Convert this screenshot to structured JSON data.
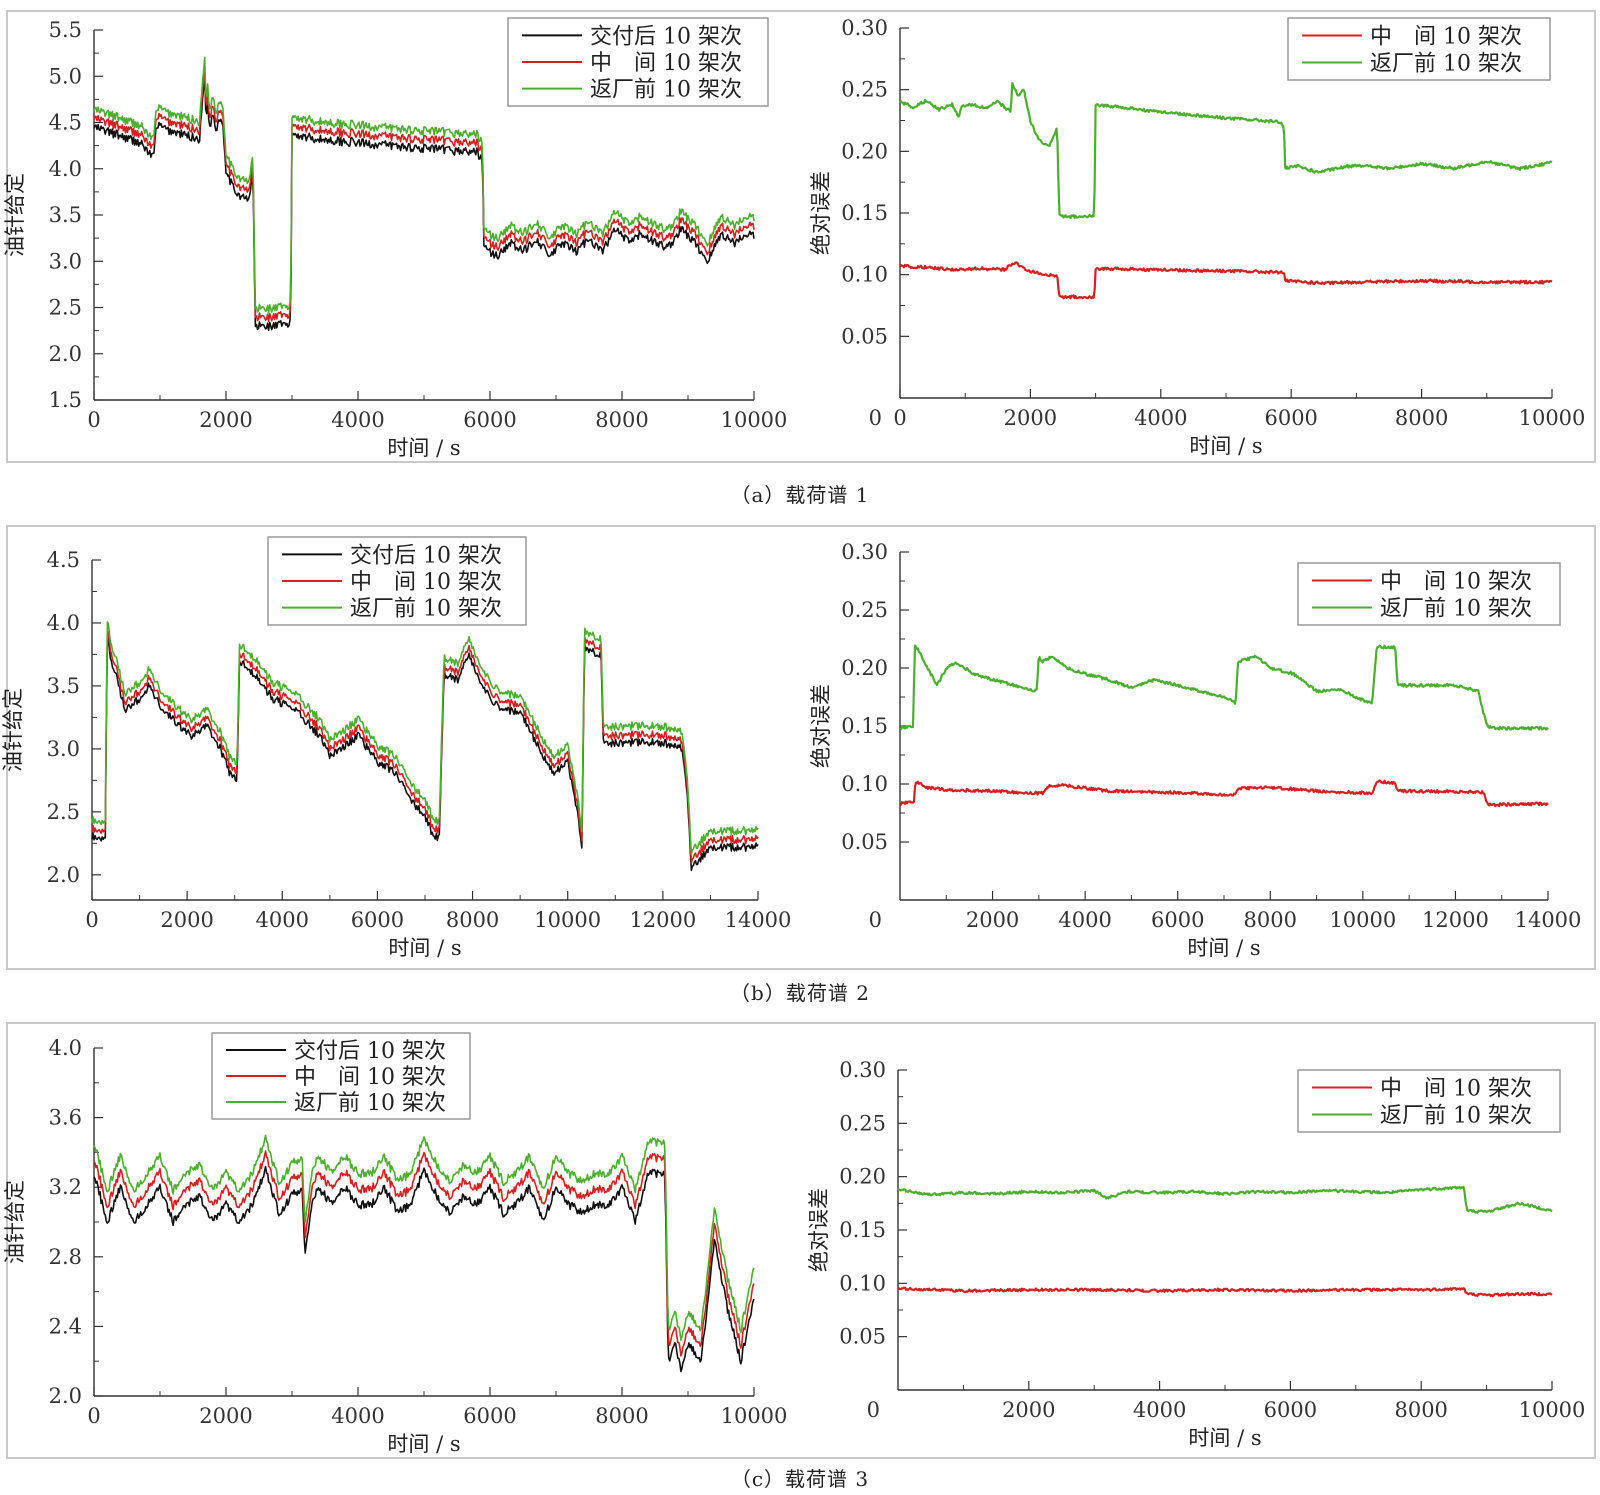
{
  "figure": {
    "captions": [
      "（a）载荷谱 1",
      "（b）载荷谱 2",
      "（c）载荷谱 3"
    ]
  },
  "colors": {
    "black": "#111111",
    "red": "#d42020",
    "green": "#4cae2e"
  },
  "chart_data": [
    {
      "id": "a-left",
      "type": "line",
      "title": "",
      "xlabel": "时间 / s",
      "ylabel": "油针给定",
      "xlim": [
        0,
        10000
      ],
      "ylim": [
        1.5,
        5.5
      ],
      "xticks": [
        0,
        2000,
        4000,
        6000,
        8000,
        10000
      ],
      "yticks": [
        1.5,
        2.0,
        2.5,
        3.0,
        3.5,
        4.0,
        4.5,
        5.0,
        5.5
      ],
      "ytick_labels": [
        "1.5",
        "2.0",
        "2.5",
        "3.0",
        "3.5",
        "4.0",
        "4.5",
        "5.0",
        "5.5"
      ],
      "legend": "top-right",
      "series": [
        {
          "name": "交付后 10 架次",
          "color": "#111111",
          "offset": 0.0,
          "x": [
            0,
            300,
            700,
            900,
            950,
            1100,
            1300,
            1600,
            1680,
            1700,
            1720,
            1750,
            1800,
            1850,
            1900,
            1950,
            2000,
            2100,
            2200,
            2350,
            2400,
            2420,
            2440,
            2500,
            2700,
            2980,
            3000,
            3400,
            4000,
            5000,
            5800,
            5890,
            5900,
            6100,
            6300,
            6500,
            6700,
            6900,
            7100,
            7300,
            7500,
            7700,
            7900,
            8100,
            8300,
            8500,
            8700,
            8900,
            9100,
            9300,
            9500,
            9700,
            9900,
            10000
          ],
          "y": [
            4.45,
            4.38,
            4.28,
            4.12,
            4.48,
            4.42,
            4.38,
            4.32,
            5.05,
            4.45,
            4.8,
            4.42,
            4.6,
            4.42,
            4.55,
            4.5,
            4.0,
            3.8,
            3.72,
            3.65,
            3.95,
            3.6,
            2.28,
            2.3,
            2.3,
            2.32,
            4.38,
            4.32,
            4.28,
            4.22,
            4.18,
            4.1,
            3.15,
            3.05,
            3.2,
            3.1,
            3.25,
            3.05,
            3.2,
            3.1,
            3.25,
            3.1,
            3.35,
            3.2,
            3.3,
            3.2,
            3.15,
            3.35,
            3.2,
            3.0,
            3.3,
            3.2,
            3.3,
            3.28
          ]
        },
        {
          "name": "中　间 10 架次",
          "color": "#d42020",
          "offset": 0.096
        },
        {
          "name": "返厂前 10 架次",
          "color": "#4cae2e",
          "offset": 0.19
        }
      ]
    },
    {
      "id": "a-right",
      "type": "line",
      "title": "",
      "xlabel": "时间 / s",
      "ylabel": "绝对误差",
      "xlim": [
        0,
        10000
      ],
      "ylim": [
        0,
        0.3
      ],
      "xticks": [
        0,
        2000,
        4000,
        6000,
        8000,
        10000
      ],
      "yticks": [
        0.05,
        0.1,
        0.15,
        0.2,
        0.25,
        0.3
      ],
      "ytick_labels": [
        "0.05",
        "0.10",
        "0.15",
        "0.20",
        "0.25",
        "0.30"
      ],
      "legend": "top-right",
      "series": [
        {
          "name": "中　间 10 架次",
          "color": "#d42020",
          "x": [
            0,
            400,
            800,
            1200,
            1600,
            1700,
            1800,
            1900,
            2000,
            2200,
            2400,
            2420,
            2440,
            2600,
            2980,
            3000,
            4000,
            5000,
            5800,
            5890,
            5900,
            6500,
            7000,
            8000,
            9000,
            10000
          ],
          "y": [
            0.107,
            0.106,
            0.104,
            0.105,
            0.104,
            0.108,
            0.109,
            0.105,
            0.103,
            0.1,
            0.099,
            0.098,
            0.082,
            0.082,
            0.082,
            0.105,
            0.104,
            0.103,
            0.102,
            0.102,
            0.095,
            0.093,
            0.094,
            0.095,
            0.094,
            0.094
          ]
        },
        {
          "name": "返厂前 10 架次",
          "color": "#4cae2e",
          "x": [
            0,
            200,
            400,
            600,
            800,
            900,
            950,
            1100,
            1300,
            1500,
            1700,
            1720,
            1800,
            1900,
            2000,
            2100,
            2200,
            2300,
            2400,
            2420,
            2440,
            2600,
            2980,
            3000,
            4000,
            5000,
            5800,
            5890,
            5900,
            6100,
            6400,
            7000,
            7500,
            8000,
            8500,
            9000,
            9500,
            10000
          ],
          "y": [
            0.24,
            0.236,
            0.241,
            0.234,
            0.238,
            0.228,
            0.237,
            0.238,
            0.235,
            0.24,
            0.232,
            0.255,
            0.245,
            0.25,
            0.225,
            0.212,
            0.206,
            0.205,
            0.218,
            0.205,
            0.148,
            0.147,
            0.148,
            0.238,
            0.232,
            0.227,
            0.224,
            0.221,
            0.186,
            0.188,
            0.183,
            0.189,
            0.186,
            0.19,
            0.186,
            0.192,
            0.186,
            0.191
          ]
        }
      ]
    },
    {
      "id": "b-left",
      "type": "line",
      "title": "",
      "xlabel": "时间 / s",
      "ylabel": "油针给定",
      "xlim": [
        0,
        14000
      ],
      "ylim": [
        1.8,
        4.5
      ],
      "xticks": [
        0,
        2000,
        4000,
        6000,
        8000,
        10000,
        12000,
        14000
      ],
      "yticks": [
        2.0,
        2.5,
        3.0,
        3.5,
        4.0,
        4.5
      ],
      "ytick_labels": [
        "2.0",
        "2.5",
        "3.0",
        "3.5",
        "4.0",
        "4.5"
      ],
      "legend": "top-center",
      "series": [
        {
          "name": "交付后 10 架次",
          "color": "#111111",
          "offset": 0.0,
          "x": [
            0,
            280,
            320,
            400,
            500,
            700,
            1000,
            1200,
            1500,
            1800,
            2100,
            2400,
            2700,
            2900,
            3050,
            3100,
            3400,
            3800,
            4300,
            4800,
            5000,
            5200,
            5600,
            6000,
            6400,
            6700,
            7000,
            7200,
            7300,
            7400,
            7700,
            7900,
            8200,
            8600,
            9000,
            9400,
            9700,
            10000,
            10200,
            10300,
            10350,
            10700,
            10750,
            11000,
            11500,
            12000,
            12400,
            12500,
            12600,
            13000,
            14000
          ],
          "y": [
            2.3,
            2.3,
            3.9,
            3.7,
            3.6,
            3.3,
            3.4,
            3.5,
            3.3,
            3.2,
            3.1,
            3.2,
            3.0,
            2.8,
            2.75,
            3.7,
            3.6,
            3.4,
            3.3,
            3.1,
            2.95,
            3.0,
            3.1,
            2.9,
            2.8,
            2.6,
            2.45,
            2.3,
            2.3,
            3.6,
            3.55,
            3.75,
            3.5,
            3.3,
            3.3,
            3.0,
            2.8,
            2.9,
            2.5,
            2.2,
            3.8,
            3.75,
            3.05,
            3.05,
            3.05,
            3.05,
            3.0,
            2.7,
            2.05,
            2.22,
            2.22
          ]
        },
        {
          "name": "中　间 10 架次",
          "color": "#d42020",
          "offset": 0.06
        },
        {
          "name": "返厂前 10 架次",
          "color": "#4cae2e",
          "offset": 0.13
        }
      ]
    },
    {
      "id": "b-right",
      "type": "line",
      "title": "",
      "xlabel": "时间 / s",
      "ylabel": "绝对误差",
      "xlim": [
        0,
        14000
      ],
      "ylim": [
        0,
        0.3
      ],
      "xticks": [
        2000,
        4000,
        6000,
        8000,
        10000,
        12000,
        14000
      ],
      "yticks": [
        0.05,
        0.1,
        0.15,
        0.2,
        0.25,
        0.3
      ],
      "ytick_labels": [
        "0.05",
        "0.10",
        "0.15",
        "0.20",
        "0.25",
        "0.30"
      ],
      "legend": "top-right",
      "series": [
        {
          "name": "中　间 10 架次",
          "color": "#d42020",
          "x": [
            0,
            300,
            330,
            600,
            1000,
            2000,
            3000,
            3100,
            3200,
            3500,
            4500,
            5500,
            6500,
            7200,
            7300,
            8000,
            9000,
            10200,
            10300,
            10700,
            10750,
            12600,
            12700,
            14000
          ],
          "y": [
            0.083,
            0.085,
            0.102,
            0.097,
            0.095,
            0.094,
            0.092,
            0.092,
            0.098,
            0.099,
            0.094,
            0.093,
            0.092,
            0.09,
            0.096,
            0.097,
            0.094,
            0.092,
            0.102,
            0.101,
            0.094,
            0.093,
            0.082,
            0.083
          ]
        },
        {
          "name": "返厂前 10 架次",
          "color": "#4cae2e",
          "x": [
            0,
            280,
            320,
            400,
            600,
            800,
            1000,
            1200,
            1600,
            2000,
            2500,
            2950,
            3000,
            3050,
            3300,
            3600,
            4000,
            4500,
            5000,
            5500,
            6000,
            6500,
            7000,
            7250,
            7300,
            7700,
            8000,
            8500,
            9000,
            9500,
            10000,
            10200,
            10300,
            10700,
            10750,
            11500,
            12000,
            12500,
            12600,
            12700,
            13000,
            14000
          ],
          "y": [
            0.148,
            0.15,
            0.22,
            0.215,
            0.2,
            0.185,
            0.2,
            0.205,
            0.195,
            0.19,
            0.185,
            0.18,
            0.21,
            0.205,
            0.21,
            0.2,
            0.195,
            0.19,
            0.183,
            0.19,
            0.185,
            0.18,
            0.175,
            0.17,
            0.205,
            0.21,
            0.2,
            0.195,
            0.18,
            0.182,
            0.172,
            0.17,
            0.218,
            0.218,
            0.185,
            0.185,
            0.185,
            0.18,
            0.162,
            0.149,
            0.148,
            0.148
          ]
        }
      ]
    },
    {
      "id": "c-left",
      "type": "line",
      "title": "",
      "xlabel": "时间 / s",
      "ylabel": "油针给定",
      "xlim": [
        0,
        10000
      ],
      "ylim": [
        2.0,
        4.0
      ],
      "xticks": [
        0,
        2000,
        4000,
        6000,
        8000,
        10000
      ],
      "yticks": [
        2.0,
        2.4,
        2.8,
        3.2,
        3.6,
        4.0
      ],
      "ytick_labels": [
        "2.0",
        "2.4",
        "2.8",
        "3.2",
        "3.6",
        "4.0"
      ],
      "legend": "top-left",
      "series": [
        {
          "name": "交付后 10 架次",
          "color": "#111111",
          "offset": 0.0,
          "x": [
            0,
            200,
            400,
            600,
            800,
            1000,
            1200,
            1400,
            1600,
            1800,
            2000,
            2200,
            2400,
            2600,
            2800,
            3000,
            3150,
            3200,
            3300,
            3400,
            3600,
            3800,
            4000,
            4200,
            4400,
            4600,
            4800,
            5000,
            5200,
            5400,
            5600,
            5800,
            6000,
            6200,
            6400,
            6600,
            6800,
            7000,
            7200,
            7400,
            7600,
            7800,
            8000,
            8200,
            8400,
            8650,
            8700,
            8800,
            8900,
            9000,
            9200,
            9400,
            9600,
            9800,
            10000
          ],
          "y": [
            3.28,
            3.0,
            3.2,
            3.0,
            3.1,
            3.2,
            3.0,
            3.1,
            3.15,
            3.0,
            3.1,
            3.0,
            3.1,
            3.3,
            3.05,
            3.15,
            3.2,
            2.8,
            3.1,
            3.2,
            3.1,
            3.2,
            3.1,
            3.1,
            3.2,
            3.05,
            3.1,
            3.3,
            3.15,
            3.05,
            3.15,
            3.1,
            3.2,
            3.05,
            3.1,
            3.2,
            3.0,
            3.2,
            3.1,
            3.05,
            3.1,
            3.1,
            3.2,
            3.0,
            3.28,
            3.28,
            2.2,
            2.3,
            2.15,
            2.3,
            2.2,
            2.9,
            2.5,
            2.2,
            2.55
          ]
        },
        {
          "name": "中　间 10 架次",
          "color": "#d42020",
          "offset": 0.09
        },
        {
          "name": "返厂前 10 架次",
          "color": "#4cae2e",
          "offset": 0.18
        }
      ]
    },
    {
      "id": "c-right",
      "type": "line",
      "title": "",
      "xlabel": "时间 / s",
      "ylabel": "绝对误差",
      "xlim": [
        0,
        10000
      ],
      "ylim": [
        0,
        0.3
      ],
      "xticks": [
        2000,
        4000,
        6000,
        8000,
        10000
      ],
      "yticks": [
        0.05,
        0.1,
        0.15,
        0.2,
        0.25,
        0.3
      ],
      "ytick_labels": [
        "0.05",
        "0.10",
        "0.15",
        "0.20",
        "0.25",
        "0.30"
      ],
      "legend": "top-right",
      "series": [
        {
          "name": "中　间 10 架次",
          "color": "#d42020",
          "x": [
            0,
            1000,
            2000,
            3000,
            4000,
            5000,
            6000,
            7000,
            8000,
            8650,
            8700,
            9000,
            9500,
            10000
          ],
          "y": [
            0.095,
            0.093,
            0.094,
            0.094,
            0.093,
            0.094,
            0.093,
            0.094,
            0.094,
            0.095,
            0.09,
            0.089,
            0.09,
            0.09
          ]
        },
        {
          "name": "返厂前 10 架次",
          "color": "#4cae2e",
          "x": [
            0,
            500,
            1000,
            1500,
            2000,
            2500,
            3000,
            3200,
            3500,
            4000,
            4500,
            5000,
            5500,
            6000,
            6500,
            7000,
            7500,
            8000,
            8650,
            8700,
            9000,
            9500,
            10000
          ],
          "y": [
            0.188,
            0.183,
            0.185,
            0.184,
            0.186,
            0.185,
            0.187,
            0.18,
            0.186,
            0.185,
            0.186,
            0.184,
            0.186,
            0.185,
            0.187,
            0.186,
            0.185,
            0.188,
            0.19,
            0.168,
            0.167,
            0.175,
            0.168
          ]
        }
      ]
    }
  ]
}
